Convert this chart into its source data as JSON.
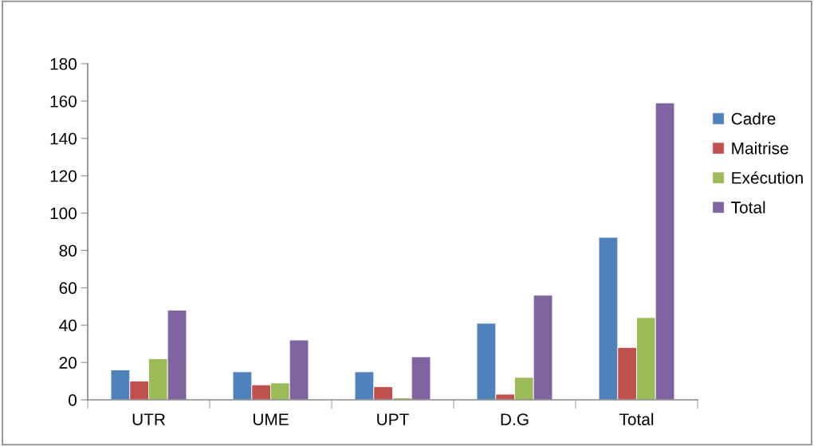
{
  "chart_data": {
    "type": "bar",
    "categories": [
      "UTR",
      "UME",
      "UPT",
      "D.G",
      "Total"
    ],
    "series": [
      {
        "name": "Cadre",
        "color": "#4f81bd",
        "values": [
          16,
          15,
          15,
          41,
          87
        ]
      },
      {
        "name": "Maitrise",
        "color": "#c0504d",
        "values": [
          10,
          8,
          7,
          3,
          28
        ]
      },
      {
        "name": "Exécution",
        "color": "#9bbb59",
        "values": [
          22,
          9,
          1,
          12,
          44
        ]
      },
      {
        "name": "Total",
        "color": "#8064a2",
        "values": [
          48,
          32,
          23,
          56,
          159
        ]
      }
    ],
    "ylim": [
      0,
      180
    ],
    "yticks": [
      0,
      20,
      40,
      60,
      80,
      100,
      120,
      140,
      160,
      180
    ],
    "grid": false,
    "legend": "right"
  }
}
